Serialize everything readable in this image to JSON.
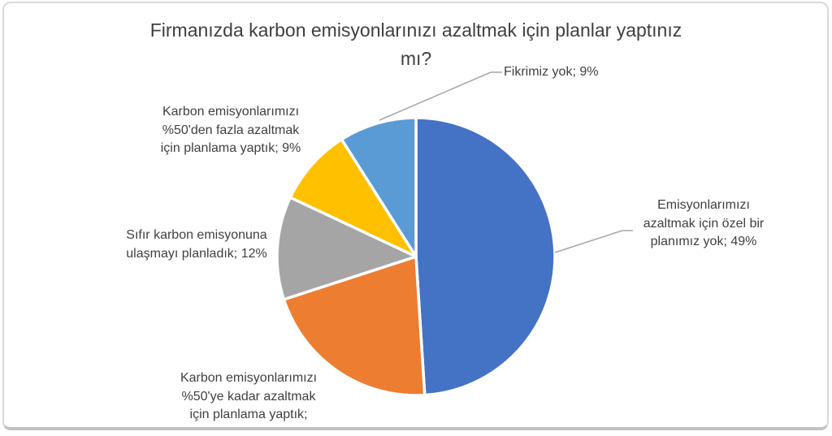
{
  "page": {
    "background_color": "#ffffff",
    "frame_border_color": "#d9d9d9"
  },
  "title": {
    "text": "Firmanızda karbon emisyonlarınızı azaltmak için planlar yaptınız mı?",
    "display": "Firmanızda karbon emisyonlarınızı azaltmak için planlar yaptınız\nmı?"
  },
  "chart_data": {
    "type": "pie",
    "title": "Firmanızda karbon emisyonlarınızı azaltmak için planlar yaptınız mı?",
    "start_angle_deg": 0,
    "direction": "clockwise",
    "legend_position": "none",
    "data_labels_style": "outside, category name; percent",
    "slices": [
      {
        "key": "no-plan",
        "label": "Emisyonlarımızı azaltmak için özel bir planımız yok",
        "value": 49,
        "unit": "%",
        "color": "#4472C4"
      },
      {
        "key": "upto-50",
        "label": "Karbon emisyonlarımızı %50'ye kadar azaltmak için planlama yaptık",
        "value": 21,
        "unit": "%",
        "color": "#ED7D31",
        "label_percent_truncated": true
      },
      {
        "key": "zero",
        "label": "Sıfır karbon emisyonuna ulaşmayı planladık",
        "value": 12,
        "unit": "%",
        "color": "#A5A5A5"
      },
      {
        "key": "over-50",
        "label": "Karbon emisyonlarımızı %50'den fazla azaltmak için planlama yaptık",
        "value": 9,
        "unit": "%",
        "color": "#FFC000"
      },
      {
        "key": "no-idea",
        "label": "Fikrimiz yok",
        "value": 9,
        "unit": "%",
        "color": "#5B9BD5"
      }
    ]
  },
  "labels": {
    "no_idea": "Fikrimiz yok; 9%",
    "over_50": "Karbon emisyonlarımızı\n%50'den fazla azaltmak\niçin planlama yaptık; 9%",
    "zero_carbon": "Sıfır karbon emisyonuna\nulaşmayı planladık; 12%",
    "upto_50": "Karbon emisyonlarımızı\n%50'ye kadar azaltmak\niçin planlama yaptık;",
    "no_plan": "Emisyonlarımızı\nazaltmak için özel bir\nplanımız yok; 49%"
  },
  "colors": {
    "slice_blue": "#4472C4",
    "slice_orange": "#ED7D31",
    "slice_gray": "#A5A5A5",
    "slice_yellow": "#FFC000",
    "slice_light_blue": "#5B9BD5",
    "text": "#404040",
    "leader_line": "#a6a6a6"
  }
}
